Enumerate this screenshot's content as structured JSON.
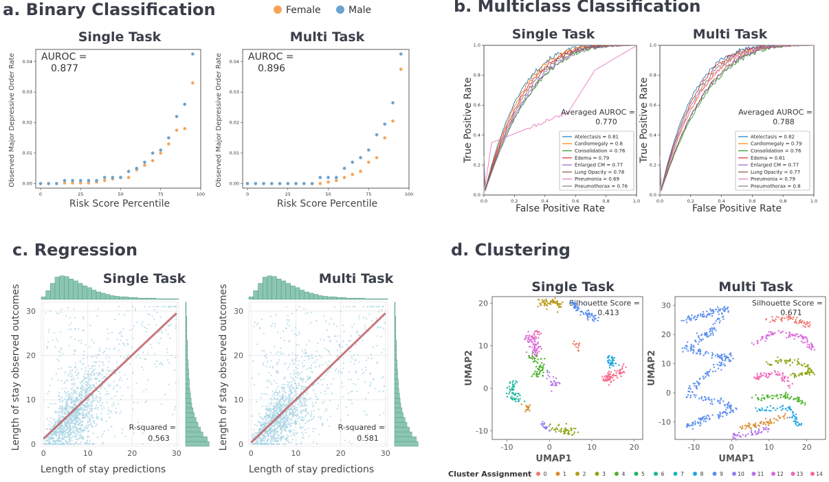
{
  "panels": {
    "a": {
      "title": "a. Binary Classification"
    },
    "b": {
      "title": "b. Multiclass Classification"
    },
    "c": {
      "title": "c. Regression"
    },
    "d": {
      "title": "d. Clustering"
    }
  },
  "colors": {
    "female": "#f5a55a",
    "male": "#6aa3d0",
    "hist": "#8cc6b2",
    "hist_edge": "#4d9a82",
    "scatter_c": "#a9d4e3",
    "fit_line": "#c0686e",
    "text": "#3a3f4a"
  },
  "chart_data": [
    {
      "id": "a_single",
      "type": "scatter",
      "title": "Single Task",
      "xlabel": "Risk Score Percentile",
      "ylabel": "Observed Major Depressive Order Rate",
      "xlim": [
        -3,
        100
      ],
      "ylim": [
        -0.0015,
        0.044
      ],
      "xticks": [
        "0",
        "25",
        "50",
        "75",
        "100"
      ],
      "yticks": [
        "0.00",
        "0.01",
        "0.02",
        "0.03",
        "0.04"
      ],
      "annotation": "AUROC =\n0.877",
      "series": [
        {
          "name": "Female",
          "x": [
            0,
            5,
            10,
            15,
            20,
            25,
            30,
            35,
            40,
            45,
            50,
            55,
            60,
            65,
            70,
            75,
            80,
            85,
            90,
            95
          ],
          "y": [
            0,
            0,
            0,
            0.0002,
            0.0002,
            0.0002,
            0.0002,
            0.0005,
            0.001,
            0.0015,
            0.002,
            0.002,
            0.0045,
            0.006,
            0.0075,
            0.01,
            0.013,
            0.0175,
            0.018,
            0.033
          ]
        },
        {
          "name": "Male",
          "x": [
            0,
            5,
            10,
            15,
            20,
            25,
            30,
            35,
            40,
            45,
            50,
            55,
            60,
            65,
            70,
            75,
            80,
            85,
            90,
            95
          ],
          "y": [
            0,
            0,
            0,
            0.001,
            0.001,
            0.001,
            0.001,
            0.001,
            0.002,
            0.002,
            0.002,
            0.004,
            0.005,
            0.007,
            0.01,
            0.011,
            0.015,
            0.022,
            0.026,
            0.0425
          ]
        }
      ]
    },
    {
      "id": "a_multi",
      "type": "scatter",
      "title": "Multi Task",
      "xlabel": "Risk Score Percentile",
      "ylabel": "Observed Major Depressive Order Rate",
      "xlim": [
        -3,
        100
      ],
      "ylim": [
        -0.0015,
        0.044
      ],
      "xticks": [
        "0",
        "25",
        "50",
        "75",
        "100"
      ],
      "yticks": [
        "0.00",
        "0.01",
        "0.02",
        "0.03",
        "0.04"
      ],
      "annotation": "AUROC =\n0.896",
      "series": [
        {
          "name": "Female",
          "x": [
            0,
            5,
            10,
            15,
            20,
            25,
            30,
            35,
            40,
            45,
            50,
            55,
            60,
            65,
            70,
            75,
            80,
            85,
            90,
            95
          ],
          "y": [
            0,
            0,
            0,
            0,
            0,
            0,
            0,
            0,
            0,
            0,
            0.0005,
            0.001,
            0.002,
            0.003,
            0.004,
            0.007,
            0.0085,
            0.015,
            0.0205,
            0.0375
          ]
        },
        {
          "name": "Male",
          "x": [
            0,
            5,
            10,
            15,
            20,
            25,
            30,
            35,
            40,
            45,
            50,
            55,
            60,
            65,
            70,
            75,
            80,
            85,
            90,
            95
          ],
          "y": [
            0,
            0,
            0,
            0,
            0,
            0,
            0,
            0,
            0,
            0.002,
            0.002,
            0.002,
            0.005,
            0.007,
            0.0085,
            0.011,
            0.016,
            0.0195,
            0.0265,
            0.0425
          ]
        }
      ]
    },
    {
      "id": "b_single",
      "type": "line",
      "title": "Single Task",
      "xlabel": "False Positive Rate",
      "ylabel": "True Positive Rate",
      "xlim": [
        0,
        1
      ],
      "ylim": [
        0,
        1
      ],
      "xticks": [
        "0.0",
        "0.2",
        "0.4",
        "0.6",
        "0.8",
        "1.0"
      ],
      "yticks": [
        "0.0",
        "0.2",
        "0.4",
        "0.6",
        "0.8",
        "1.0"
      ],
      "annotation": "Averaged AUROC =\n0.770",
      "series": [
        {
          "name": "Atelectasis = 0.81",
          "color": "#1f77b4",
          "auc": 0.81
        },
        {
          "name": "Cardiomegaly = 0.8",
          "color": "#ff7f0e",
          "auc": 0.8
        },
        {
          "name": "Consolidation = 0.76",
          "color": "#2ca02c",
          "auc": 0.76
        },
        {
          "name": "Edema = 0.79",
          "color": "#d62728",
          "auc": 0.79
        },
        {
          "name": "Enlarged CM = 0.77",
          "color": "#9467bd",
          "auc": 0.77
        },
        {
          "name": "Lung Opacity = 0.78",
          "color": "#8c564b",
          "auc": 0.78
        },
        {
          "name": "Pneumonia = 0.69",
          "color": "#e377c2",
          "auc": 0.69
        },
        {
          "name": "Pneumothorax = 0.76",
          "color": "#7f7f7f",
          "auc": 0.76
        }
      ]
    },
    {
      "id": "b_multi",
      "type": "line",
      "title": "Multi Task",
      "xlabel": "False Positive Rate",
      "ylabel": "True Positive Rate",
      "xlim": [
        0,
        1
      ],
      "ylim": [
        0,
        1
      ],
      "xticks": [
        "0.0",
        "0.2",
        "0.4",
        "0.6",
        "0.8",
        "1.0"
      ],
      "yticks": [
        "0.0",
        "0.2",
        "0.4",
        "0.6",
        "0.8",
        "1.0"
      ],
      "annotation": "Averaged AUROC =\n0.788",
      "series": [
        {
          "name": "Atelectasis = 0.82",
          "color": "#1f77b4",
          "auc": 0.82
        },
        {
          "name": "Cardiomegaly = 0.79",
          "color": "#ff7f0e",
          "auc": 0.79
        },
        {
          "name": "Consolidation = 0.76",
          "color": "#2ca02c",
          "auc": 0.76
        },
        {
          "name": "Edema = 0.81",
          "color": "#d62728",
          "auc": 0.81
        },
        {
          "name": "Enlarged CM = 0.77",
          "color": "#9467bd",
          "auc": 0.77
        },
        {
          "name": "Lung Opacity = 0.77",
          "color": "#8c564b",
          "auc": 0.77
        },
        {
          "name": "Pneumonia = 0.79",
          "color": "#e377c2",
          "auc": 0.79
        },
        {
          "name": "Pneumothorax = 0.8",
          "color": "#7f7f7f",
          "auc": 0.8
        }
      ]
    },
    {
      "id": "c_single",
      "type": "scatter",
      "title": "Single Task",
      "xlabel": "Length of stay predictions",
      "ylabel": "Length of stay observed outcomes",
      "xlim": [
        -0.5,
        30.5
      ],
      "ylim": [
        -0.5,
        32
      ],
      "xticks": [
        "0",
        "10",
        "20",
        "30"
      ],
      "yticks": [
        "0",
        "10",
        "20",
        "30"
      ],
      "annotation": "R-squared =\n0.563",
      "fit_line": [
        [
          0,
          1.2
        ],
        [
          30,
          29.5
        ]
      ]
    },
    {
      "id": "c_multi",
      "type": "scatter",
      "title": "Multi Task",
      "xlabel": "Length of stay predictions",
      "ylabel": "Length of stay observed outcomes",
      "xlim": [
        -0.5,
        30.5
      ],
      "ylim": [
        -0.5,
        32
      ],
      "xticks": [
        "0",
        "10",
        "20",
        "30"
      ],
      "yticks": [
        "0",
        "10",
        "20",
        "30"
      ],
      "annotation": "R-squared =\n0.581",
      "fit_line": [
        [
          0,
          0.3
        ],
        [
          30,
          29.5
        ]
      ]
    },
    {
      "id": "d_single",
      "type": "scatter",
      "title": "Single Task",
      "xlabel": "UMAP1",
      "ylabel": "UMAP2",
      "xlim": [
        -13.5,
        22
      ],
      "ylim": [
        -12,
        21.5
      ],
      "xticks": [
        "-10",
        "0",
        "10",
        "20"
      ],
      "yticks": [
        "-10",
        "0",
        "10",
        "20"
      ],
      "annotation": "Silhouette Score =\n0.413"
    },
    {
      "id": "d_multi",
      "type": "scatter",
      "title": "Multi Task",
      "xlabel": "UMAP1",
      "ylabel": "UMAP2",
      "xlim": [
        -15,
        25
      ],
      "ylim": [
        -16,
        33
      ],
      "xticks": [
        "-10",
        "0",
        "10",
        "20"
      ],
      "yticks": [
        "-10",
        "0",
        "10",
        "20",
        "30"
      ],
      "annotation": "Silhouette Score =\n0.671"
    }
  ],
  "legend_a": {
    "female": "Female",
    "male": "Male"
  },
  "clusters": {
    "label": "Cluster Assignment",
    "items": [
      {
        "id": "0",
        "color": "#f0766d"
      },
      {
        "id": "1",
        "color": "#d98a2c"
      },
      {
        "id": "2",
        "color": "#b59a16"
      },
      {
        "id": "3",
        "color": "#8ea816"
      },
      {
        "id": "4",
        "color": "#4cb22a"
      },
      {
        "id": "5",
        "color": "#1fb56a"
      },
      {
        "id": "6",
        "color": "#1db59b"
      },
      {
        "id": "7",
        "color": "#1eb2c4"
      },
      {
        "id": "8",
        "color": "#1ea6e0"
      },
      {
        "id": "9",
        "color": "#5b8ef0"
      },
      {
        "id": "10",
        "color": "#8f7ff2"
      },
      {
        "id": "11",
        "color": "#b771ea"
      },
      {
        "id": "12",
        "color": "#dc6bdc"
      },
      {
        "id": "13",
        "color": "#f067b7"
      },
      {
        "id": "14",
        "color": "#f76b8b"
      }
    ]
  }
}
